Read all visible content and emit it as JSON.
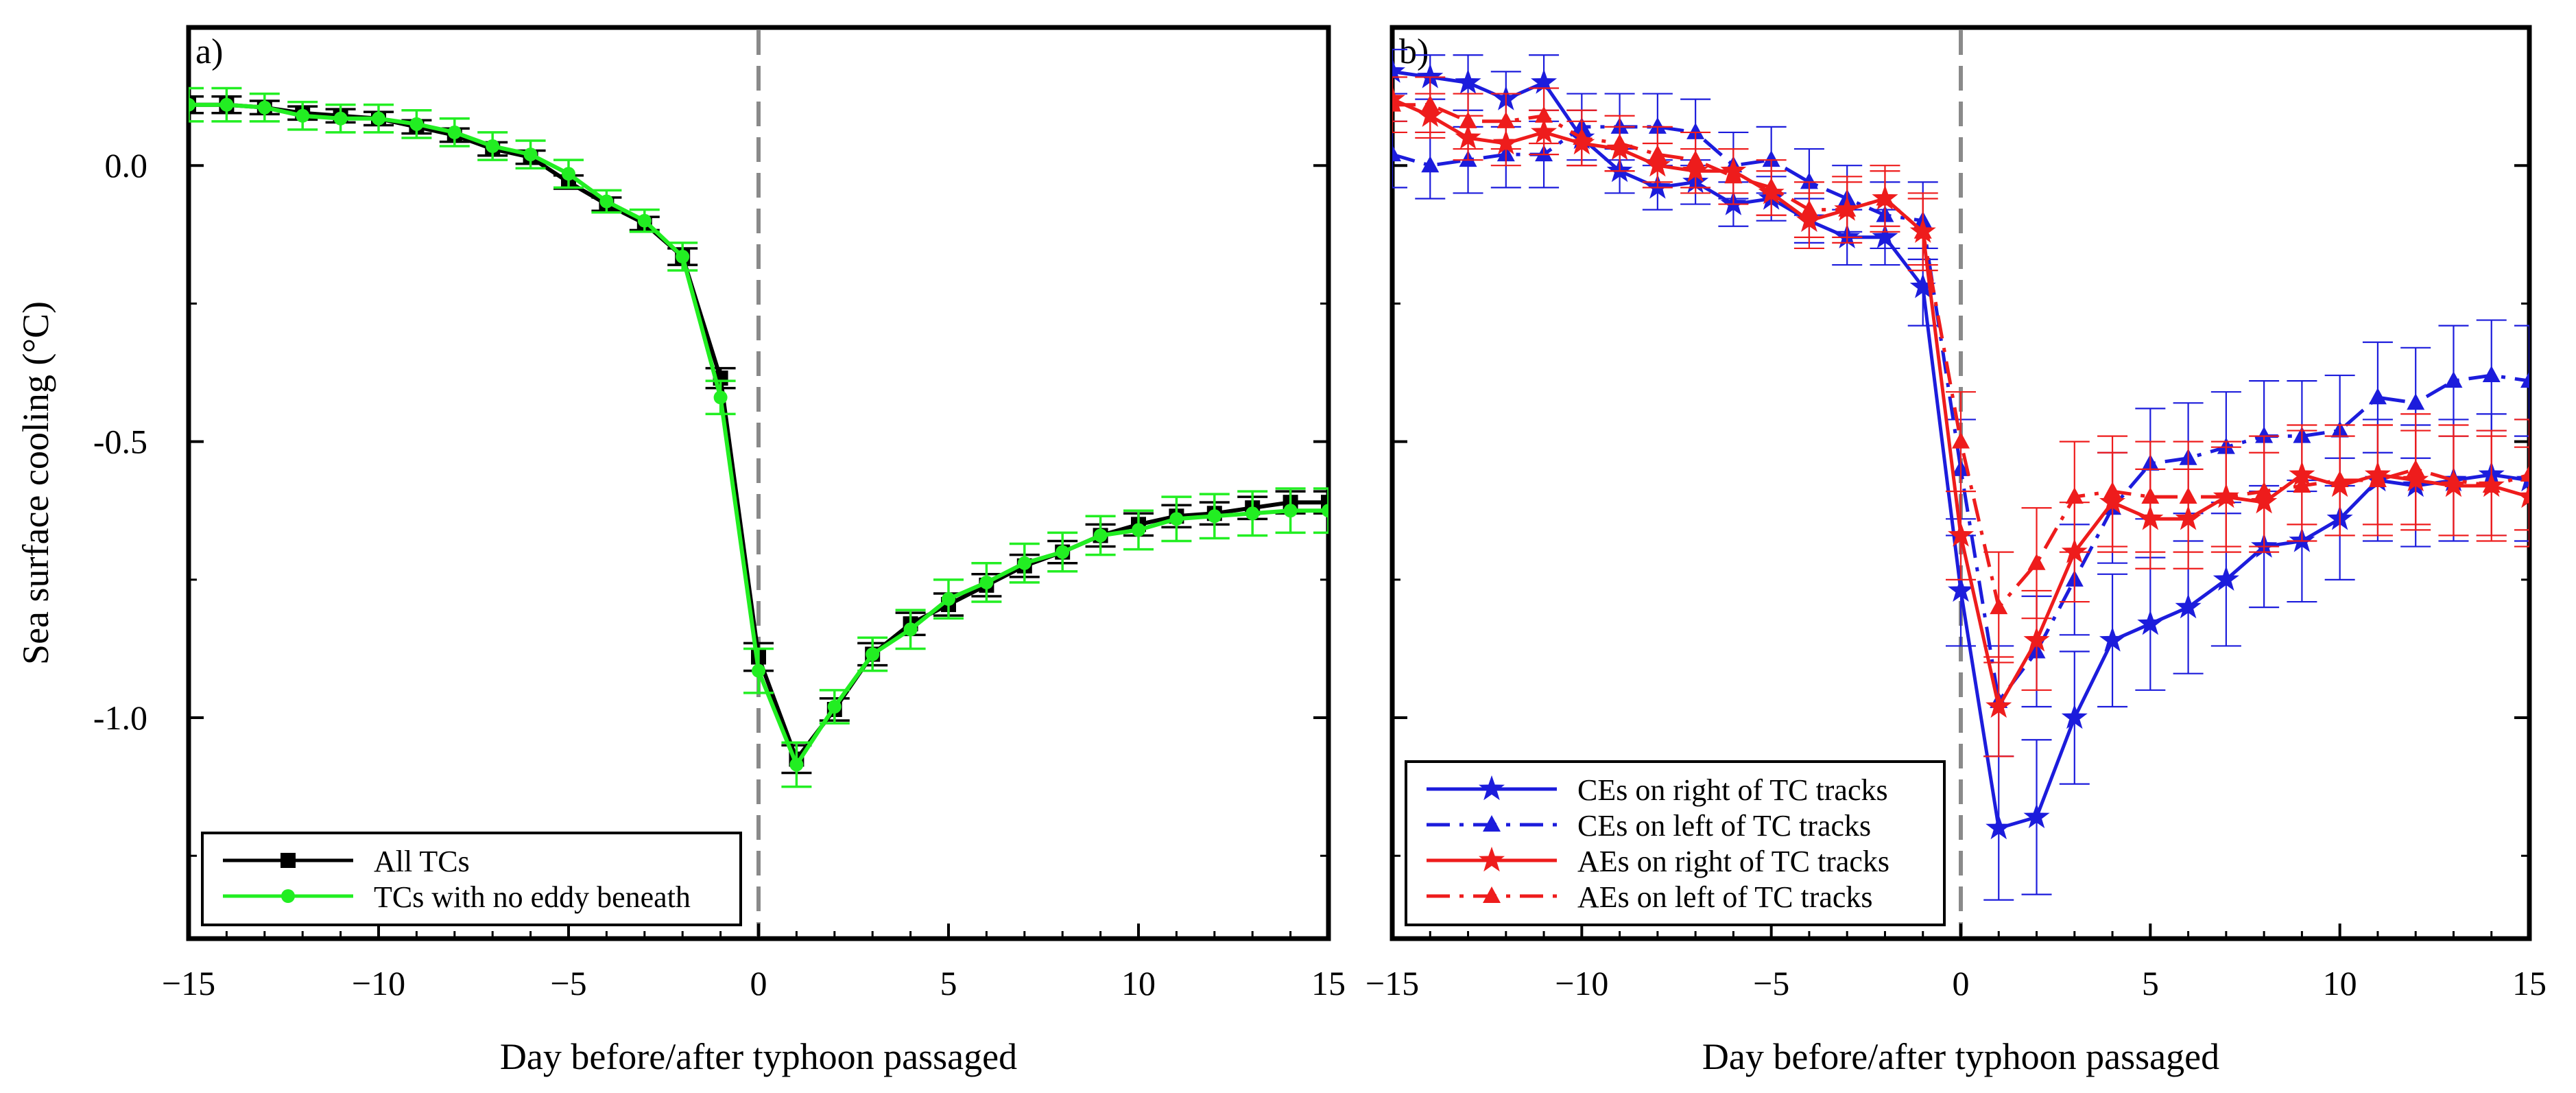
{
  "chart_data": [
    {
      "panel_label": "a)",
      "type": "line",
      "xlabel": "Day before/after typhoon passaged",
      "ylabel": "Sea surface cooling (°C)",
      "xlim": [
        -15,
        15
      ],
      "ylim": [
        -1.4,
        0.25
      ],
      "xticks": [
        -15,
        -10,
        -5,
        0,
        5,
        10,
        15
      ],
      "xtick_labels": [
        "−15",
        "−10",
        "−5",
        "0",
        "5",
        "10",
        "15"
      ],
      "yticks": [
        0.0,
        -0.5,
        -1.0
      ],
      "ytick_labels": [
        "0.0",
        "-0.5",
        "-1.0"
      ],
      "x": [
        -15,
        -14,
        -13,
        -12,
        -11,
        -10,
        -9,
        -8,
        -7,
        -6,
        -5,
        -4,
        -3,
        -2,
        -1,
        0,
        1,
        2,
        3,
        4,
        5,
        6,
        7,
        8,
        9,
        10,
        11,
        12,
        13,
        14,
        15
      ],
      "series": [
        {
          "name": "All TCs",
          "color": "#000000",
          "marker": "square",
          "dash": "solid",
          "values": [
            0.11,
            0.11,
            0.105,
            0.095,
            0.09,
            0.085,
            0.07,
            0.055,
            0.03,
            0.015,
            -0.03,
            -0.07,
            -0.105,
            -0.165,
            -0.385,
            -0.89,
            -1.075,
            -0.985,
            -0.885,
            -0.83,
            -0.795,
            -0.76,
            -0.725,
            -0.7,
            -0.67,
            -0.65,
            -0.635,
            -0.63,
            -0.62,
            -0.61,
            -0.61
          ],
          "errors": [
            0.015,
            0.015,
            0.012,
            0.012,
            0.012,
            0.012,
            0.012,
            0.012,
            0.012,
            0.012,
            0.012,
            0.012,
            0.012,
            0.015,
            0.018,
            0.025,
            0.025,
            0.02,
            0.02,
            0.02,
            0.02,
            0.02,
            0.02,
            0.02,
            0.02,
            0.02,
            0.02,
            0.02,
            0.02,
            0.02,
            0.02
          ]
        },
        {
          "name": "TCs with no eddy beneath",
          "color": "#22ee22",
          "marker": "circle",
          "dash": "solid",
          "values": [
            0.11,
            0.11,
            0.105,
            0.09,
            0.085,
            0.085,
            0.075,
            0.06,
            0.035,
            0.02,
            -0.015,
            -0.065,
            -0.1,
            -0.165,
            -0.42,
            -0.915,
            -1.085,
            -0.98,
            -0.885,
            -0.84,
            -0.785,
            -0.755,
            -0.72,
            -0.7,
            -0.67,
            -0.66,
            -0.64,
            -0.635,
            -0.63,
            -0.625,
            -0.625
          ],
          "errors": [
            0.03,
            0.03,
            0.025,
            0.025,
            0.025,
            0.025,
            0.025,
            0.025,
            0.025,
            0.025,
            0.025,
            0.02,
            0.02,
            0.025,
            0.03,
            0.04,
            0.04,
            0.03,
            0.03,
            0.035,
            0.035,
            0.035,
            0.035,
            0.035,
            0.035,
            0.035,
            0.04,
            0.04,
            0.04,
            0.04,
            0.04
          ]
        }
      ],
      "legend_position": "bottom-left"
    },
    {
      "panel_label": "b)",
      "type": "line",
      "xlabel": "Day before/after typhoon passaged",
      "ylabel": "",
      "xlim": [
        -15,
        15
      ],
      "ylim": [
        -1.4,
        0.25
      ],
      "xticks": [
        -15,
        -10,
        -5,
        0,
        5,
        10,
        15
      ],
      "xtick_labels": [
        "−15",
        "−10",
        "−5",
        "0",
        "5",
        "10",
        "15"
      ],
      "x": [
        -15,
        -14,
        -13,
        -12,
        -11,
        -10,
        -9,
        -8,
        -7,
        -6,
        -5,
        -4,
        -3,
        -2,
        -1,
        0,
        1,
        2,
        3,
        4,
        5,
        6,
        7,
        8,
        9,
        10,
        11,
        12,
        13,
        14,
        15
      ],
      "series": [
        {
          "name": "CEs on right of TC tracks",
          "color": "#1c1cdc",
          "marker": "star",
          "dash": "solid",
          "values": [
            0.17,
            0.16,
            0.15,
            0.12,
            0.15,
            0.05,
            -0.01,
            -0.04,
            -0.03,
            -0.07,
            -0.06,
            -0.1,
            -0.13,
            -0.13,
            -0.22,
            -0.77,
            -1.2,
            -1.18,
            -1.0,
            -0.86,
            -0.83,
            -0.8,
            -0.75,
            -0.69,
            -0.68,
            -0.64,
            -0.57,
            -0.58,
            -0.57,
            -0.56,
            -0.57
          ],
          "errors": [
            0.04,
            0.04,
            0.05,
            0.05,
            0.05,
            0.05,
            0.04,
            0.04,
            0.04,
            0.04,
            0.04,
            0.04,
            0.05,
            0.05,
            0.07,
            0.1,
            0.13,
            0.14,
            0.12,
            0.12,
            0.12,
            0.12,
            0.12,
            0.11,
            0.11,
            0.11,
            0.11,
            0.11,
            0.11,
            0.11,
            0.11
          ]
        },
        {
          "name": "CEs on left of TC tracks",
          "color": "#1c1cdc",
          "marker": "triangle",
          "dash": "dashdot",
          "values": [
            0.02,
            0.0,
            0.01,
            0.02,
            0.02,
            0.07,
            0.07,
            0.07,
            0.06,
            0.0,
            0.01,
            -0.03,
            -0.06,
            -0.09,
            -0.1,
            -0.55,
            -0.97,
            -0.88,
            -0.75,
            -0.62,
            -0.54,
            -0.53,
            -0.51,
            -0.49,
            -0.49,
            -0.48,
            -0.42,
            -0.43,
            -0.39,
            -0.38,
            -0.39
          ],
          "errors": [
            0.06,
            0.06,
            0.06,
            0.06,
            0.06,
            0.06,
            0.06,
            0.06,
            0.06,
            0.06,
            0.06,
            0.06,
            0.06,
            0.06,
            0.07,
            0.09,
            0.1,
            0.1,
            0.1,
            0.1,
            0.1,
            0.1,
            0.1,
            0.1,
            0.1,
            0.1,
            0.1,
            0.1,
            0.1,
            0.1,
            0.1
          ]
        },
        {
          "name": "AEs on right of TC tracks",
          "color": "#ee1c1c",
          "marker": "star",
          "dash": "solid",
          "values": [
            0.12,
            0.09,
            0.05,
            0.04,
            0.06,
            0.04,
            0.03,
            0.0,
            -0.01,
            -0.01,
            -0.05,
            -0.1,
            -0.08,
            -0.06,
            -0.12,
            -0.67,
            -0.98,
            -0.86,
            -0.7,
            -0.61,
            -0.64,
            -0.64,
            -0.6,
            -0.61,
            -0.56,
            -0.58,
            -0.56,
            -0.57,
            -0.58,
            -0.58,
            -0.6
          ],
          "errors": [
            0.04,
            0.04,
            0.04,
            0.04,
            0.04,
            0.04,
            0.04,
            0.04,
            0.04,
            0.04,
            0.04,
            0.05,
            0.05,
            0.05,
            0.06,
            0.08,
            0.09,
            0.09,
            0.09,
            0.09,
            0.09,
            0.09,
            0.09,
            0.09,
            0.09,
            0.09,
            0.09,
            0.09,
            0.09,
            0.09,
            0.09
          ]
        },
        {
          "name": "AEs on left of TC tracks",
          "color": "#ee1c1c",
          "marker": "triangle",
          "dash": "dashdot",
          "values": [
            0.11,
            0.11,
            0.08,
            0.08,
            0.09,
            0.05,
            0.04,
            0.02,
            0.01,
            -0.02,
            -0.04,
            -0.08,
            -0.08,
            -0.06,
            -0.12,
            -0.5,
            -0.8,
            -0.72,
            -0.6,
            -0.59,
            -0.6,
            -0.6,
            -0.6,
            -0.59,
            -0.58,
            -0.57,
            -0.57,
            -0.55,
            -0.57,
            -0.58,
            -0.56
          ],
          "errors": [
            0.05,
            0.05,
            0.05,
            0.05,
            0.05,
            0.05,
            0.05,
            0.05,
            0.05,
            0.05,
            0.05,
            0.05,
            0.06,
            0.06,
            0.07,
            0.09,
            0.1,
            0.1,
            0.1,
            0.1,
            0.1,
            0.1,
            0.1,
            0.1,
            0.1,
            0.1,
            0.1,
            0.1,
            0.1,
            0.1,
            0.1
          ]
        }
      ],
      "legend_position": "bottom-left"
    }
  ]
}
